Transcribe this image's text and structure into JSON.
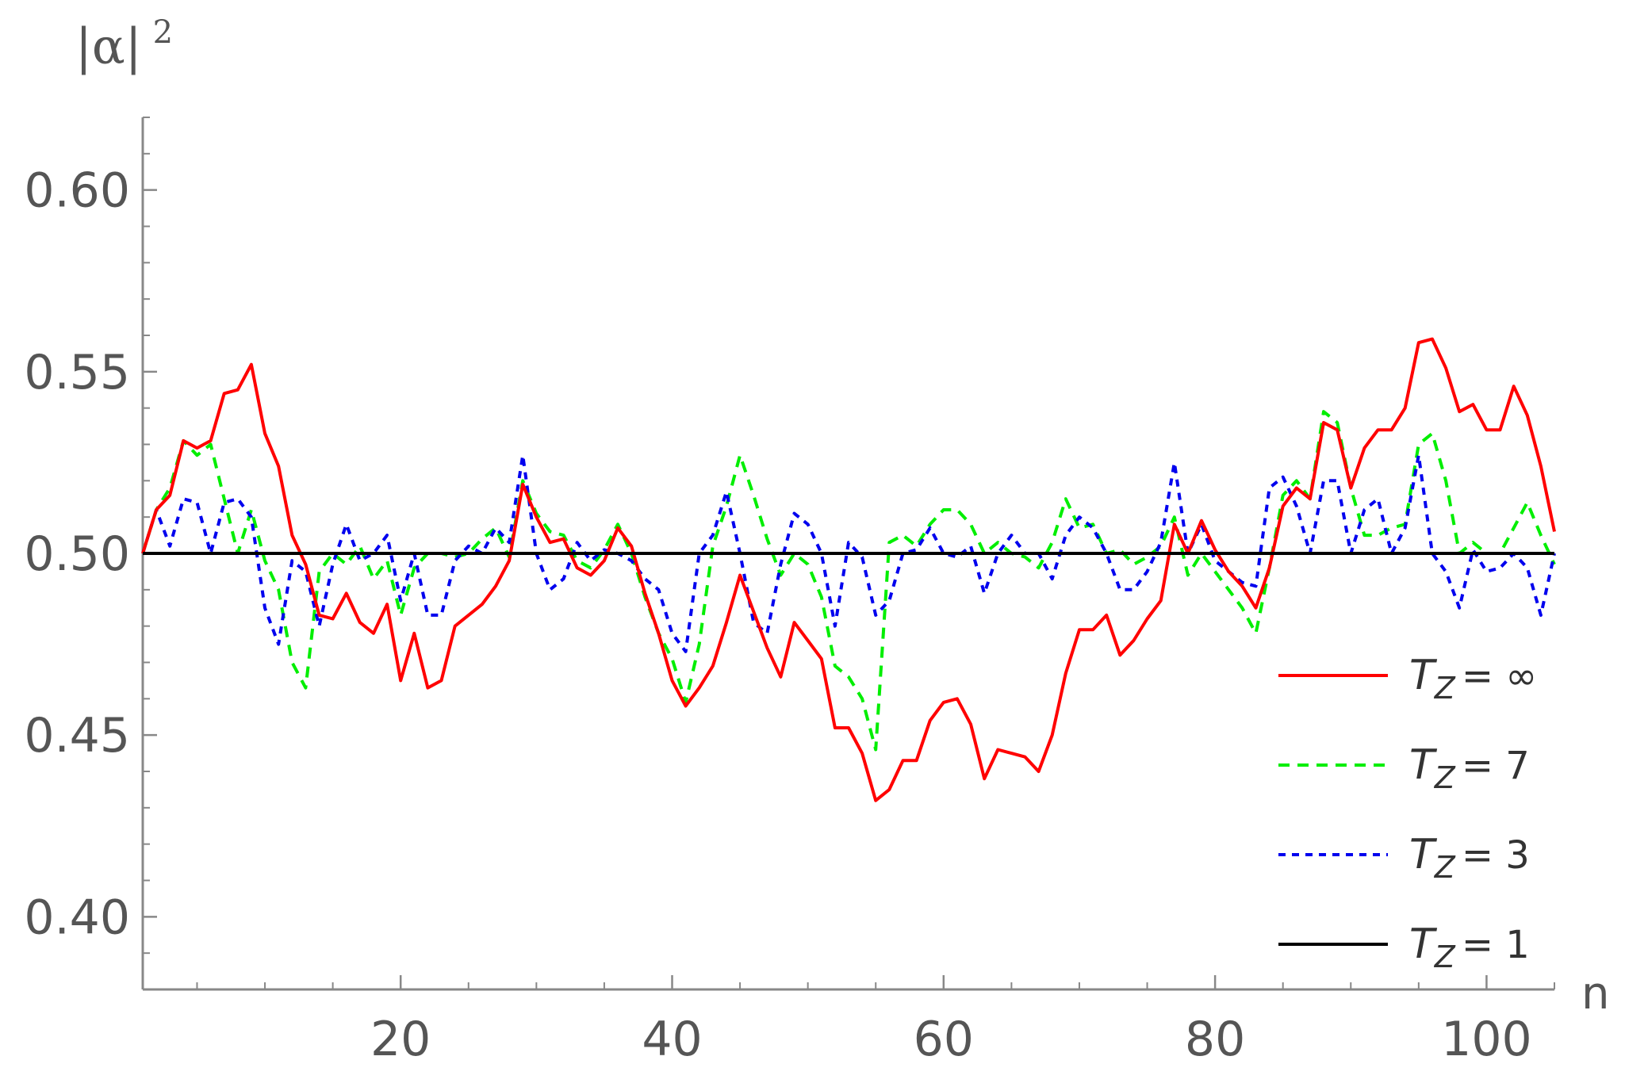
{
  "chart_data": {
    "type": "line",
    "title": "",
    "xlabel": "n",
    "ylabel": "|α|",
    "ylabel_sup": "2",
    "xlim": [
      1,
      105
    ],
    "ylim": [
      0.38,
      0.62
    ],
    "x_major_ticks": [
      20,
      40,
      60,
      80,
      100
    ],
    "x_tick_labels": [
      "20",
      "40",
      "60",
      "80",
      "100"
    ],
    "y_major_ticks": [
      0.4,
      0.45,
      0.5,
      0.55,
      0.6
    ],
    "y_tick_labels": [
      "0.40",
      "0.45",
      "0.50",
      "0.55",
      "0.60"
    ],
    "x_minor_step": 5,
    "y_minor_step": 0.01,
    "grid": false,
    "legend_position": "right",
    "series": [
      {
        "label_var": "T",
        "label_sub": "Z",
        "label_value": "= ∞",
        "color": "#ff0000",
        "dash": "solid",
        "x": [
          1,
          2,
          3,
          4,
          5,
          6,
          7,
          8,
          9,
          10,
          11,
          12,
          13,
          14,
          15,
          16,
          17,
          18,
          19,
          20,
          21,
          22,
          23,
          24,
          25,
          26,
          27,
          28,
          29,
          30,
          31,
          32,
          33,
          34,
          35,
          36,
          37,
          38,
          39,
          40,
          41,
          42,
          43,
          44,
          45,
          46,
          47,
          48,
          49,
          50,
          51,
          52,
          53,
          54,
          55,
          56,
          57,
          58,
          59,
          60,
          61,
          62,
          63,
          64,
          65,
          66,
          67,
          68,
          69,
          70,
          71,
          72,
          73,
          74,
          75,
          76,
          77,
          78,
          79,
          80,
          81,
          82,
          83,
          84,
          85,
          86,
          87,
          88,
          89,
          90,
          91,
          92,
          93,
          94,
          95,
          96,
          97,
          98,
          99,
          100,
          101,
          102,
          103,
          104,
          105
        ],
        "values": [
          0.5,
          0.512,
          0.516,
          0.531,
          0.529,
          0.531,
          0.544,
          0.545,
          0.552,
          0.533,
          0.524,
          0.505,
          0.497,
          0.483,
          0.482,
          0.489,
          0.481,
          0.478,
          0.486,
          0.465,
          0.478,
          0.463,
          0.465,
          0.48,
          0.483,
          0.486,
          0.491,
          0.498,
          0.519,
          0.51,
          0.503,
          0.504,
          0.496,
          0.494,
          0.498,
          0.507,
          0.502,
          0.489,
          0.478,
          0.465,
          0.458,
          0.463,
          0.469,
          0.481,
          0.494,
          0.484,
          0.474,
          0.466,
          0.481,
          0.476,
          0.471,
          0.452,
          0.452,
          0.445,
          0.432,
          0.435,
          0.443,
          0.443,
          0.454,
          0.459,
          0.46,
          0.453,
          0.438,
          0.446,
          0.445,
          0.444,
          0.44,
          0.45,
          0.467,
          0.479,
          0.479,
          0.483,
          0.472,
          0.476,
          0.482,
          0.487,
          0.508,
          0.5,
          0.509,
          0.501,
          0.495,
          0.491,
          0.485,
          0.496,
          0.513,
          0.518,
          0.515,
          0.536,
          0.534,
          0.518,
          0.529,
          0.534,
          0.534,
          0.54,
          0.558,
          0.559,
          0.551,
          0.539,
          0.541,
          0.534,
          0.534,
          0.546,
          0.538,
          0.524,
          0.506
        ]
      },
      {
        "label_var": "T",
        "label_sub": "Z",
        "label_value": "= 7",
        "color": "#00ee00",
        "dash": "dashed",
        "x": [
          1,
          2,
          3,
          4,
          5,
          6,
          7,
          8,
          9,
          10,
          11,
          12,
          13,
          14,
          15,
          16,
          17,
          18,
          19,
          20,
          21,
          22,
          23,
          24,
          25,
          26,
          27,
          28,
          29,
          30,
          31,
          32,
          33,
          34,
          35,
          36,
          37,
          38,
          39,
          40,
          41,
          42,
          43,
          44,
          45,
          46,
          47,
          48,
          49,
          50,
          51,
          52,
          53,
          54,
          55,
          56,
          57,
          58,
          59,
          60,
          61,
          62,
          63,
          64,
          65,
          66,
          67,
          68,
          69,
          70,
          71,
          72,
          73,
          74,
          75,
          76,
          77,
          78,
          79,
          80,
          81,
          82,
          83,
          84,
          85,
          86,
          87,
          88,
          89,
          90,
          91,
          92,
          93,
          94,
          95,
          96,
          97,
          98,
          99,
          100,
          101,
          102,
          103,
          104,
          105
        ],
        "values": [
          0.5,
          0.512,
          0.518,
          0.531,
          0.527,
          0.53,
          0.515,
          0.5,
          0.512,
          0.498,
          0.49,
          0.47,
          0.463,
          0.495,
          0.5,
          0.497,
          0.502,
          0.493,
          0.498,
          0.483,
          0.496,
          0.5,
          0.5,
          0.499,
          0.5,
          0.504,
          0.507,
          0.499,
          0.52,
          0.511,
          0.506,
          0.505,
          0.498,
          0.496,
          0.501,
          0.508,
          0.5,
          0.488,
          0.478,
          0.471,
          0.459,
          0.475,
          0.502,
          0.513,
          0.527,
          0.516,
          0.504,
          0.494,
          0.5,
          0.497,
          0.488,
          0.469,
          0.466,
          0.46,
          0.446,
          0.503,
          0.505,
          0.502,
          0.508,
          0.512,
          0.512,
          0.508,
          0.5,
          0.503,
          0.5,
          0.499,
          0.496,
          0.503,
          0.515,
          0.507,
          0.508,
          0.5,
          0.501,
          0.497,
          0.499,
          0.502,
          0.51,
          0.494,
          0.5,
          0.495,
          0.49,
          0.485,
          0.478,
          0.496,
          0.516,
          0.52,
          0.515,
          0.539,
          0.536,
          0.518,
          0.505,
          0.505,
          0.507,
          0.508,
          0.53,
          0.533,
          0.52,
          0.5,
          0.503,
          0.5,
          0.5,
          0.507,
          0.514,
          0.505,
          0.497
        ]
      },
      {
        "label_var": "T",
        "label_sub": "Z",
        "label_value": "= 3",
        "color": "#0000ee",
        "dash": "dotted",
        "x": [
          1,
          2,
          3,
          4,
          5,
          6,
          7,
          8,
          9,
          10,
          11,
          12,
          13,
          14,
          15,
          16,
          17,
          18,
          19,
          20,
          21,
          22,
          23,
          24,
          25,
          26,
          27,
          28,
          29,
          30,
          31,
          32,
          33,
          34,
          35,
          36,
          37,
          38,
          39,
          40,
          41,
          42,
          43,
          44,
          45,
          46,
          47,
          48,
          49,
          50,
          51,
          52,
          53,
          54,
          55,
          56,
          57,
          58,
          59,
          60,
          61,
          62,
          63,
          64,
          65,
          66,
          67,
          68,
          69,
          70,
          71,
          72,
          73,
          74,
          75,
          76,
          77,
          78,
          79,
          80,
          81,
          82,
          83,
          84,
          85,
          86,
          87,
          88,
          89,
          90,
          91,
          92,
          93,
          94,
          95,
          96,
          97,
          98,
          99,
          100,
          101,
          102,
          103,
          104,
          105
        ],
        "values": [
          0.5,
          0.512,
          0.502,
          0.515,
          0.514,
          0.5,
          0.514,
          0.515,
          0.51,
          0.485,
          0.475,
          0.498,
          0.495,
          0.48,
          0.497,
          0.508,
          0.498,
          0.5,
          0.505,
          0.487,
          0.5,
          0.483,
          0.483,
          0.498,
          0.502,
          0.5,
          0.507,
          0.503,
          0.527,
          0.5,
          0.49,
          0.493,
          0.503,
          0.498,
          0.501,
          0.5,
          0.498,
          0.493,
          0.49,
          0.478,
          0.473,
          0.5,
          0.505,
          0.517,
          0.5,
          0.481,
          0.478,
          0.497,
          0.511,
          0.508,
          0.5,
          0.48,
          0.503,
          0.499,
          0.483,
          0.487,
          0.5,
          0.501,
          0.507,
          0.5,
          0.499,
          0.502,
          0.489,
          0.5,
          0.505,
          0.5,
          0.5,
          0.493,
          0.505,
          0.51,
          0.507,
          0.5,
          0.49,
          0.49,
          0.495,
          0.503,
          0.525,
          0.5,
          0.508,
          0.498,
          0.495,
          0.492,
          0.491,
          0.518,
          0.521,
          0.513,
          0.5,
          0.52,
          0.52,
          0.5,
          0.512,
          0.515,
          0.5,
          0.507,
          0.527,
          0.5,
          0.495,
          0.485,
          0.501,
          0.495,
          0.496,
          0.5,
          0.496,
          0.483,
          0.5
        ]
      },
      {
        "label_var": "T",
        "label_sub": "Z",
        "label_value": "= 1",
        "color": "#000000",
        "dash": "solid",
        "x": [
          1,
          105
        ],
        "values": [
          0.5,
          0.5
        ]
      }
    ]
  }
}
